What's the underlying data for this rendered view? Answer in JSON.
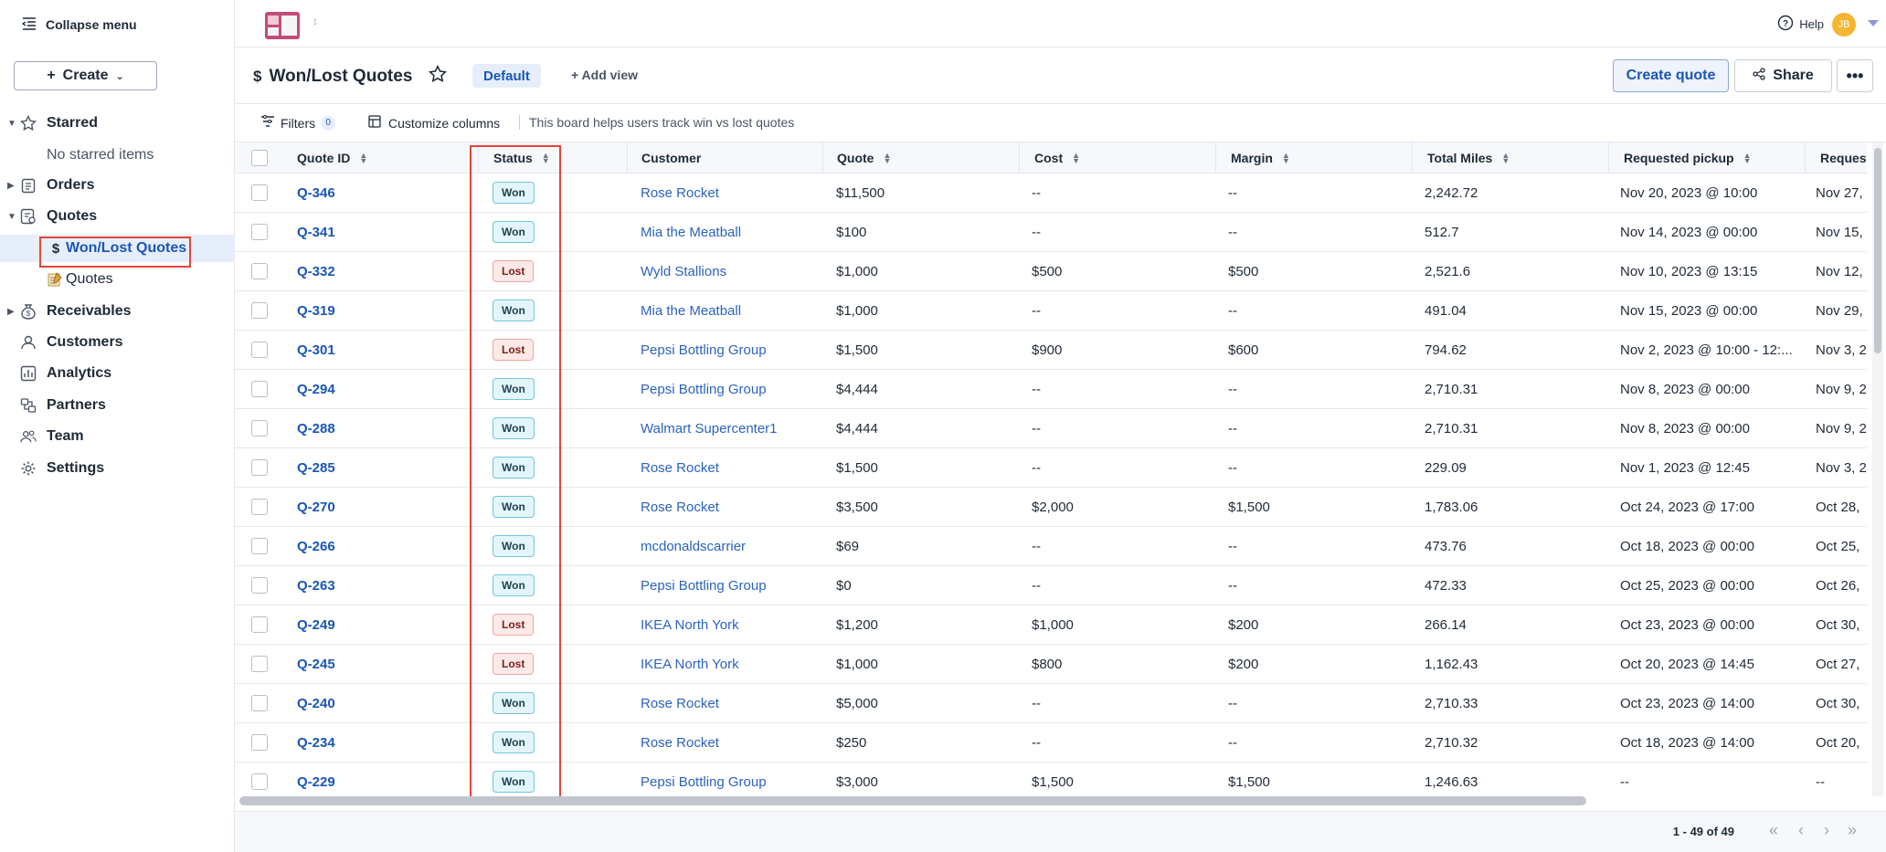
{
  "sidebar": {
    "collapse_label": "Collapse menu",
    "create_label": "Create",
    "items": [
      {
        "label": "Starred",
        "icon": "star-icon"
      },
      {
        "label": "No starred items"
      },
      {
        "label": "Orders",
        "icon": "clipboard-icon"
      },
      {
        "label": "Quotes",
        "icon": "quotes-icon"
      },
      {
        "label": "Won/Lost Quotes",
        "icon": "dollar-icon"
      },
      {
        "label": "Quotes",
        "icon": "memo-icon"
      },
      {
        "label": "Receivables",
        "icon": "money-bag-icon"
      },
      {
        "label": "Customers",
        "icon": "customers-icon"
      },
      {
        "label": "Analytics",
        "icon": "analytics-icon"
      },
      {
        "label": "Partners",
        "icon": "partners-icon"
      },
      {
        "label": "Team",
        "icon": "team-icon"
      },
      {
        "label": "Settings",
        "icon": "gear-icon"
      }
    ]
  },
  "topbar": {
    "help_label": "Help",
    "avatar_initials": "JB"
  },
  "header": {
    "title": "Won/Lost Quotes",
    "view_default": "Default",
    "add_view": "+ Add view",
    "create_quote": "Create quote",
    "share": "Share",
    "more": "•••"
  },
  "toolbar": {
    "filters": "Filters",
    "filters_count": "0",
    "customize": "Customize columns",
    "description": "This board helps users track win vs lost quotes"
  },
  "table": {
    "columns": [
      "Quote ID",
      "Status",
      "Customer",
      "Quote",
      "Cost",
      "Margin",
      "Total Miles",
      "Requested pickup",
      "Request"
    ],
    "rows": [
      {
        "id": "Q-346",
        "status": "Won",
        "customer": "Rose Rocket",
        "quote": "$11,500",
        "cost": "--",
        "margin": "--",
        "miles": "2,242.72",
        "pickup": "Nov 20, 2023 @ 10:00",
        "request": "Nov 27,"
      },
      {
        "id": "Q-341",
        "status": "Won",
        "customer": "Mia the Meatball",
        "quote": "$100",
        "cost": "--",
        "margin": "--",
        "miles": "512.7",
        "pickup": "Nov 14, 2023 @ 00:00",
        "request": "Nov 15,"
      },
      {
        "id": "Q-332",
        "status": "Lost",
        "customer": "Wyld Stallions",
        "quote": "$1,000",
        "cost": "$500",
        "margin": "$500",
        "miles": "2,521.6",
        "pickup": "Nov 10, 2023 @ 13:15",
        "request": "Nov 12,"
      },
      {
        "id": "Q-319",
        "status": "Won",
        "customer": "Mia the Meatball",
        "quote": "$1,000",
        "cost": "--",
        "margin": "--",
        "miles": "491.04",
        "pickup": "Nov 15, 2023 @ 00:00",
        "request": "Nov 29,"
      },
      {
        "id": "Q-301",
        "status": "Lost",
        "customer": "Pepsi Bottling Group",
        "quote": "$1,500",
        "cost": "$900",
        "margin": "$600",
        "miles": "794.62",
        "pickup": "Nov 2, 2023 @ 10:00 - 12:...",
        "request": "Nov 3, 2"
      },
      {
        "id": "Q-294",
        "status": "Won",
        "customer": "Pepsi Bottling Group",
        "quote": "$4,444",
        "cost": "--",
        "margin": "--",
        "miles": "2,710.31",
        "pickup": "Nov 8, 2023 @ 00:00",
        "request": "Nov 9, 2"
      },
      {
        "id": "Q-288",
        "status": "Won",
        "customer": "Walmart Supercenter1",
        "quote": "$4,444",
        "cost": "--",
        "margin": "--",
        "miles": "2,710.31",
        "pickup": "Nov 8, 2023 @ 00:00",
        "request": "Nov 9, 2"
      },
      {
        "id": "Q-285",
        "status": "Won",
        "customer": "Rose Rocket",
        "quote": "$1,500",
        "cost": "--",
        "margin": "--",
        "miles": "229.09",
        "pickup": "Nov 1, 2023 @ 12:45",
        "request": "Nov 3, 2"
      },
      {
        "id": "Q-270",
        "status": "Won",
        "customer": "Rose Rocket",
        "quote": "$3,500",
        "cost": "$2,000",
        "margin": "$1,500",
        "miles": "1,783.06",
        "pickup": "Oct 24, 2023 @ 17:00",
        "request": "Oct 28,"
      },
      {
        "id": "Q-266",
        "status": "Won",
        "customer": "mcdonaldscarrier",
        "quote": "$69",
        "cost": "--",
        "margin": "--",
        "miles": "473.76",
        "pickup": "Oct 18, 2023 @ 00:00",
        "request": "Oct 25,"
      },
      {
        "id": "Q-263",
        "status": "Won",
        "customer": "Pepsi Bottling Group",
        "quote": "$0",
        "cost": "--",
        "margin": "--",
        "miles": "472.33",
        "pickup": "Oct 25, 2023 @ 00:00",
        "request": "Oct 26,"
      },
      {
        "id": "Q-249",
        "status": "Lost",
        "customer": "IKEA North York",
        "quote": "$1,200",
        "cost": "$1,000",
        "margin": "$200",
        "miles": "266.14",
        "pickup": "Oct 23, 2023 @ 00:00",
        "request": "Oct 30,"
      },
      {
        "id": "Q-245",
        "status": "Lost",
        "customer": "IKEA North York",
        "quote": "$1,000",
        "cost": "$800",
        "margin": "$200",
        "miles": "1,162.43",
        "pickup": "Oct 20, 2023 @ 14:45",
        "request": "Oct 27,"
      },
      {
        "id": "Q-240",
        "status": "Won",
        "customer": "Rose Rocket",
        "quote": "$5,000",
        "cost": "--",
        "margin": "--",
        "miles": "2,710.33",
        "pickup": "Oct 23, 2023 @ 14:00",
        "request": "Oct 30,"
      },
      {
        "id": "Q-234",
        "status": "Won",
        "customer": "Rose Rocket",
        "quote": "$250",
        "cost": "--",
        "margin": "--",
        "miles": "2,710.32",
        "pickup": "Oct 18, 2023 @ 14:00",
        "request": "Oct 20,"
      },
      {
        "id": "Q-229",
        "status": "Won",
        "customer": "Pepsi Bottling Group",
        "quote": "$3,000",
        "cost": "$1,500",
        "margin": "$1,500",
        "miles": "1,246.63",
        "pickup": "--",
        "request": "--"
      }
    ]
  },
  "footer": {
    "pagination": "1 - 49 of 49"
  },
  "colors": {
    "accent": "#1a56b8",
    "highlight_box": "#e2463a",
    "won_badge_bg": "#e3f6fb",
    "lost_badge_bg": "#fde9e8"
  }
}
